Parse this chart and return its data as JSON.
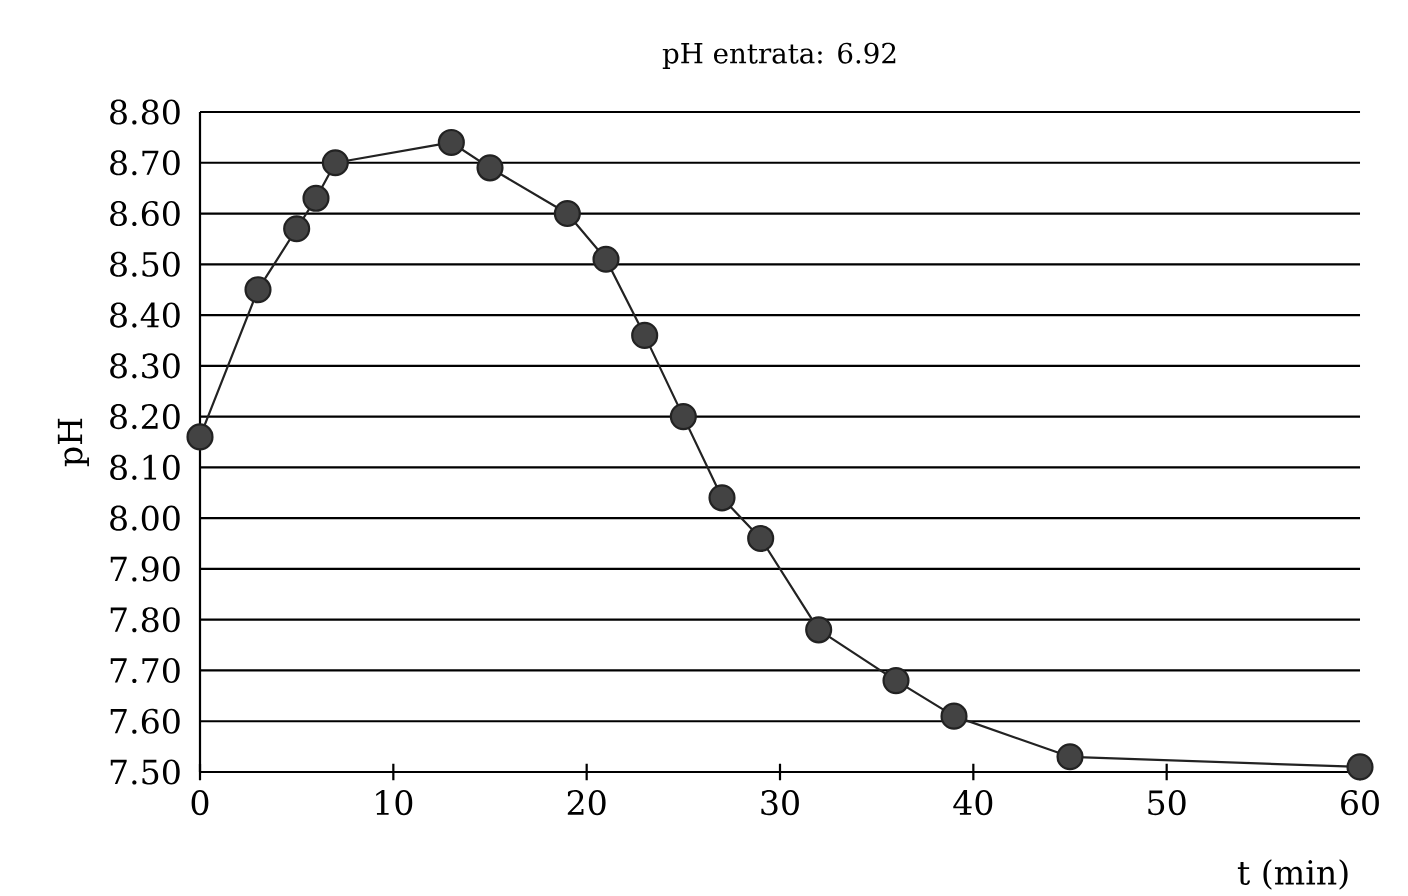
{
  "chart_data": {
    "type": "line",
    "title": "pH entrata: 6.92",
    "xlabel": "t (min)",
    "ylabel": "pH",
    "x": [
      0,
      3,
      5,
      6,
      7,
      13,
      15,
      19,
      21,
      23,
      25,
      27,
      29,
      32,
      36,
      39,
      45,
      60
    ],
    "values": [
      8.16,
      8.45,
      8.57,
      8.63,
      8.7,
      8.74,
      8.69,
      8.6,
      8.51,
      8.36,
      8.2,
      8.04,
      7.96,
      7.78,
      7.68,
      7.61,
      7.53,
      7.51
    ],
    "color": "#222222",
    "marker": "circle",
    "line_style": "solid",
    "grid": "y",
    "xlim": [
      0,
      60
    ],
    "xticks": [
      0,
      10,
      20,
      30,
      40,
      50,
      60
    ],
    "ylim": [
      7.5,
      8.8
    ],
    "yticks": [
      {
        "value": 7.5,
        "label": "7.50"
      },
      {
        "value": 7.6,
        "label": "7.60"
      },
      {
        "value": 7.7,
        "label": "7.70"
      },
      {
        "value": 7.8,
        "label": "7.80"
      },
      {
        "value": 7.9,
        "label": "7.90"
      },
      {
        "value": 8.0,
        "label": "8.00"
      },
      {
        "value": 8.1,
        "label": "8.10"
      },
      {
        "value": 8.2,
        "label": "8.20"
      },
      {
        "value": 8.3,
        "label": "8.30"
      },
      {
        "value": 8.4,
        "label": "8.40"
      },
      {
        "value": 8.5,
        "label": "8.50"
      },
      {
        "value": 8.6,
        "label": "8.60"
      },
      {
        "value": 8.7,
        "label": "8.70"
      },
      {
        "value": 8.8,
        "label": "8.80"
      }
    ]
  }
}
